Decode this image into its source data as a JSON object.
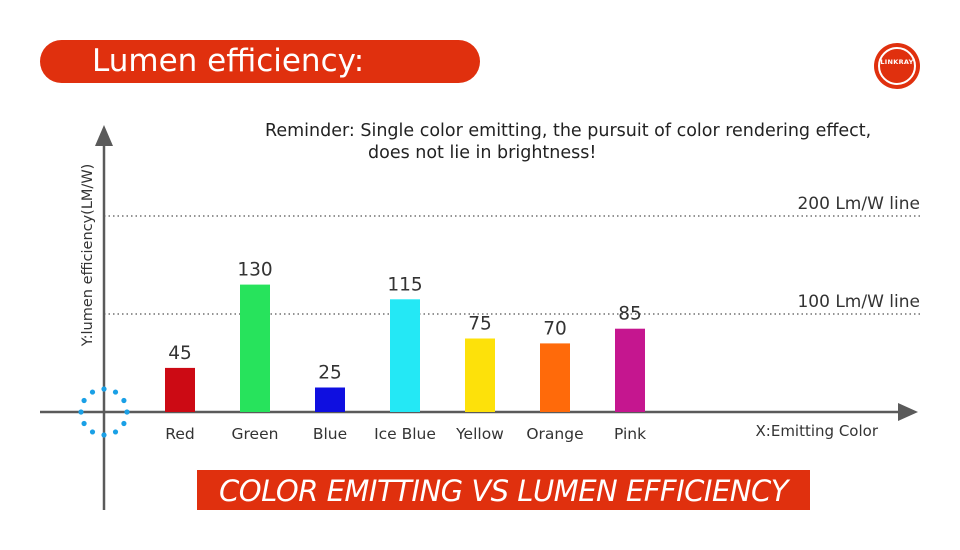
{
  "header": {
    "title": "Lumen efficiency:"
  },
  "logo": {
    "text": "LINKRAY"
  },
  "reminder": {
    "line1": "Reminder: Single color emitting, the pursuit of color rendering effect,",
    "line2": "does not lie in brightness!"
  },
  "banner": {
    "text": "COLOR EMITTING VS LUMEN EFFICIENCY"
  },
  "colors": {
    "accent": "#e0300e"
  },
  "chart_data": {
    "type": "bar",
    "title": "COLOR EMITTING VS LUMEN EFFICIENCY",
    "xlabel": "X:Emitting Color",
    "ylabel": "Y:lumen efficiency(LM/W)",
    "categories": [
      "Red",
      "Green",
      "Blue",
      "Ice Blue",
      "Yellow",
      "Orange",
      "Pink"
    ],
    "values": [
      45,
      130,
      25,
      115,
      75,
      70,
      85
    ],
    "bar_colors": [
      "#cc0a14",
      "#27e35c",
      "#0f0fe0",
      "#24e8f5",
      "#fde10a",
      "#ff6a0a",
      "#c5168f"
    ],
    "reference_lines": [
      {
        "value": 200,
        "label": "200 Lm/W line"
      },
      {
        "value": 100,
        "label": "100 Lm/W line"
      }
    ],
    "ylim": [
      0,
      300
    ],
    "grid": false,
    "data_labels": true
  }
}
